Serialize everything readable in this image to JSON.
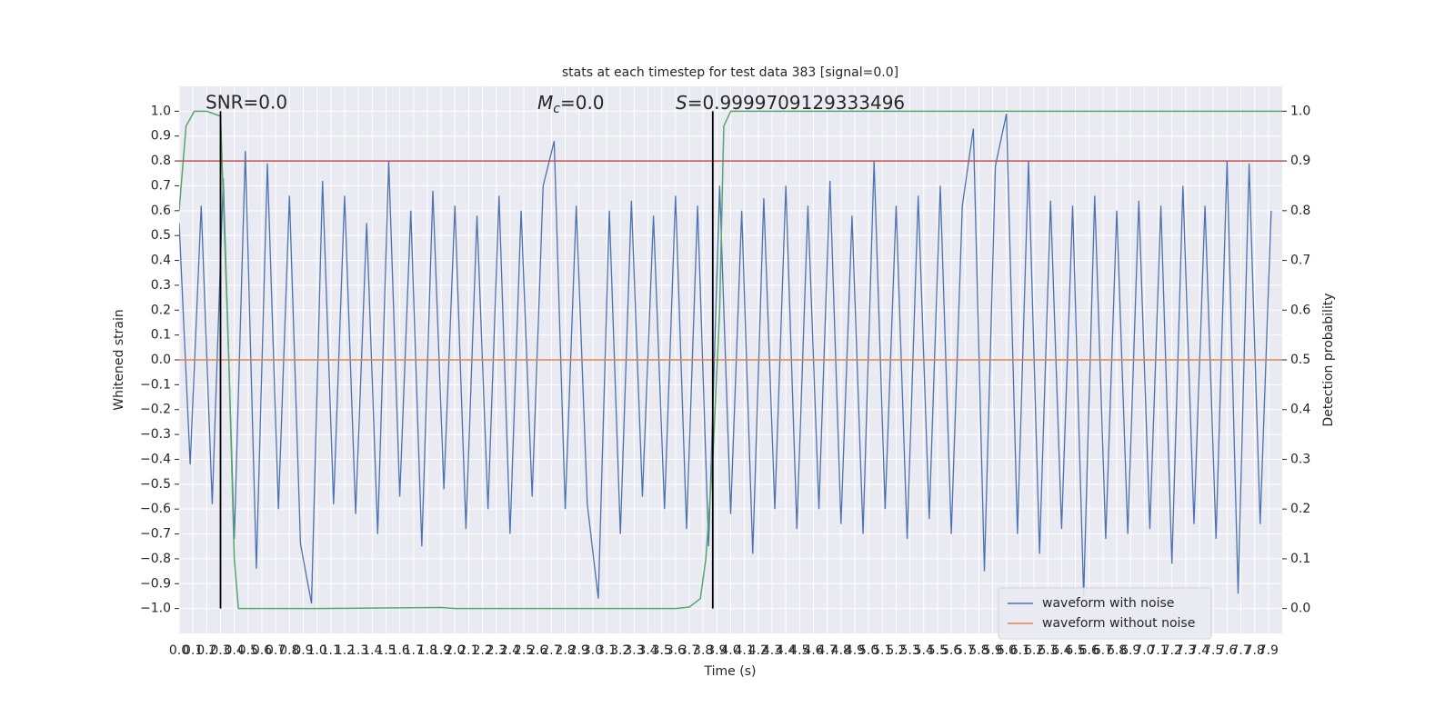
{
  "chart_data": {
    "type": "line",
    "title": "stats at each timestep for test data 383 [signal=0.0]",
    "xlabel": "Time (s)",
    "ylabel": "Whitened strain",
    "y2label": "Detection probability",
    "annotations": [
      {
        "text": "SNR=0.0"
      },
      {
        "symbol": "M",
        "subscript": "c",
        "text": "=0.0"
      },
      {
        "symbol": "S",
        "text": "=0.9999709129333496"
      }
    ],
    "xlim": [
      0,
      8
    ],
    "ylim": [
      -1.1,
      1.1
    ],
    "y2lim": [
      -0.05,
      1.05
    ],
    "xticks": [
      {
        "value": 0,
        "label": "0.0"
      },
      0.1,
      0.2,
      0.3,
      0.4,
      0.5,
      0.6,
      0.7,
      0.8,
      0.9,
      {
        "value": 1,
        "label": "1.0"
      },
      1.1,
      1.2,
      1.3,
      1.4,
      1.5,
      1.6,
      1.7,
      1.8,
      1.9,
      {
        "value": 2,
        "label": "2.0"
      },
      2.1,
      2.2,
      2.3,
      2.4,
      2.5,
      2.6,
      2.7,
      2.8,
      2.9,
      {
        "value": 3,
        "label": "3.0"
      },
      3.1,
      3.2,
      3.3,
      3.4,
      3.5,
      3.6,
      3.7,
      3.8,
      3.9,
      {
        "value": 4,
        "label": "4.0"
      },
      4.1,
      4.2,
      4.3,
      4.4,
      4.5,
      4.6,
      4.7,
      4.8,
      4.9,
      {
        "value": 5,
        "label": "5.0"
      },
      5.1,
      5.2,
      5.3,
      5.4,
      5.5,
      5.6,
      5.7,
      5.8,
      5.9,
      {
        "value": 6,
        "label": "6.0"
      },
      6.1,
      6.2,
      6.3,
      6.4,
      6.5,
      6.6,
      6.7,
      6.8,
      6.9,
      {
        "value": 7,
        "label": "7.0"
      },
      7.1,
      7.2,
      7.3,
      7.4,
      7.5,
      7.6,
      7.7,
      7.8,
      7.9
    ],
    "yticks": [
      {
        "value": -1,
        "label": "−1.0"
      },
      {
        "value": -0.9,
        "label": "−0.9"
      },
      {
        "value": -0.8,
        "label": "−0.8"
      },
      {
        "value": -0.7,
        "label": "−0.7"
      },
      {
        "value": -0.6,
        "label": "−0.6"
      },
      {
        "value": -0.5,
        "label": "−0.5"
      },
      {
        "value": -0.4,
        "label": "−0.4"
      },
      {
        "value": -0.3,
        "label": "−0.3"
      },
      {
        "value": -0.2,
        "label": "−0.2"
      },
      {
        "value": -0.1,
        "label": "−0.1"
      },
      {
        "value": 0,
        "label": "0.0"
      },
      0.1,
      0.2,
      0.3,
      0.4,
      0.5,
      0.6,
      0.7,
      0.8,
      0.9,
      {
        "value": 1,
        "label": "1.0"
      }
    ],
    "y2ticks": [
      {
        "value": 0,
        "label": "0.0"
      },
      0.1,
      0.2,
      0.3,
      0.4,
      0.5,
      0.6,
      0.7,
      0.8,
      0.9,
      {
        "value": 1,
        "label": "1.0"
      }
    ],
    "grid": true,
    "legend": "lower right",
    "series": [
      {
        "name": "waveform with noise",
        "color": "#4c72b0",
        "x": [
          0,
          0.08,
          0.16,
          0.24,
          0.32,
          0.4,
          0.48,
          0.56,
          0.64,
          0.72,
          0.8,
          0.88,
          0.96,
          1.04,
          1.12,
          1.2,
          1.28,
          1.36,
          1.44,
          1.52,
          1.6,
          1.68,
          1.76,
          1.84,
          1.92,
          2,
          2.08,
          2.16,
          2.24,
          2.32,
          2.4,
          2.48,
          2.56,
          2.64,
          2.72,
          2.8,
          2.88,
          2.96,
          3.04,
          3.12,
          3.2,
          3.28,
          3.36,
          3.44,
          3.52,
          3.6,
          3.68,
          3.76,
          3.84,
          3.92,
          4,
          4.08,
          4.16,
          4.24,
          4.32,
          4.4,
          4.48,
          4.56,
          4.64,
          4.72,
          4.8,
          4.88,
          4.96,
          5.04,
          5.12,
          5.2,
          5.28,
          5.36,
          5.44,
          5.52,
          5.6,
          5.68,
          5.76,
          5.84,
          5.92,
          6,
          6.08,
          6.16,
          6.24,
          6.32,
          6.4,
          6.48,
          6.56,
          6.64,
          6.72,
          6.8,
          6.88,
          6.96,
          7.04,
          7.12,
          7.2,
          7.28,
          7.36,
          7.44,
          7.52,
          7.6,
          7.68,
          7.76,
          7.84,
          7.92
        ],
        "values": [
          0.55,
          -0.42,
          0.62,
          -0.58,
          0.73,
          -0.72,
          0.84,
          -0.84,
          0.79,
          -0.6,
          0.66,
          -0.74,
          -0.98,
          0.72,
          -0.58,
          0.66,
          -0.62,
          0.55,
          -0.7,
          0.8,
          -0.55,
          0.6,
          -0.75,
          0.68,
          -0.52,
          0.62,
          -0.68,
          0.58,
          -0.6,
          0.66,
          -0.7,
          0.6,
          -0.55,
          0.7,
          0.88,
          -0.6,
          0.62,
          -0.58,
          -0.96,
          0.6,
          -0.7,
          0.64,
          -0.55,
          0.58,
          -0.6,
          0.66,
          -0.68,
          0.62,
          -0.75,
          0.7,
          -0.62,
          0.6,
          -0.78,
          0.65,
          -0.6,
          0.7,
          -0.68,
          0.62,
          -0.6,
          0.72,
          -0.66,
          0.58,
          -0.7,
          0.8,
          -0.6,
          0.62,
          -0.72,
          0.66,
          -0.64,
          0.7,
          -0.7,
          0.62,
          0.93,
          -0.85,
          0.78,
          0.99,
          -0.7,
          0.8,
          -0.78,
          0.64,
          -0.68,
          0.62,
          -0.95,
          0.66,
          -0.72,
          0.6,
          -0.7,
          0.64,
          -0.68,
          0.62,
          -0.82,
          0.7,
          -0.66,
          0.62,
          -0.72,
          0.8,
          -0.94,
          0.79,
          -0.66,
          0.6
        ]
      },
      {
        "name": "waveform without noise",
        "color": "#dd8452",
        "x": [
          0,
          8
        ],
        "values": [
          0,
          0
        ]
      },
      {
        "color": "#55a868",
        "axis": "y2",
        "x": [
          0,
          0.05,
          0.11,
          0.2,
          0.3,
          0.36,
          0.4,
          0.43,
          1.0,
          1.9,
          2.0,
          3.6,
          3.7,
          3.78,
          3.82,
          3.87,
          3.92,
          3.95,
          4.0,
          8.0
        ],
        "values": [
          0.8,
          0.97,
          1.0,
          1.0,
          0.99,
          0.5,
          0.1,
          0.0,
          0.0,
          0.002,
          0.0,
          0.0,
          0.003,
          0.02,
          0.1,
          0.3,
          0.6,
          0.97,
          1.0,
          1.0
        ]
      }
    ],
    "hline": {
      "y": 0.8,
      "color": "#c44e52"
    },
    "vlines": {
      "x": [
        0.3,
        3.87
      ],
      "ymin": -1.0,
      "ymax": 1.0,
      "color": "#000000"
    }
  }
}
